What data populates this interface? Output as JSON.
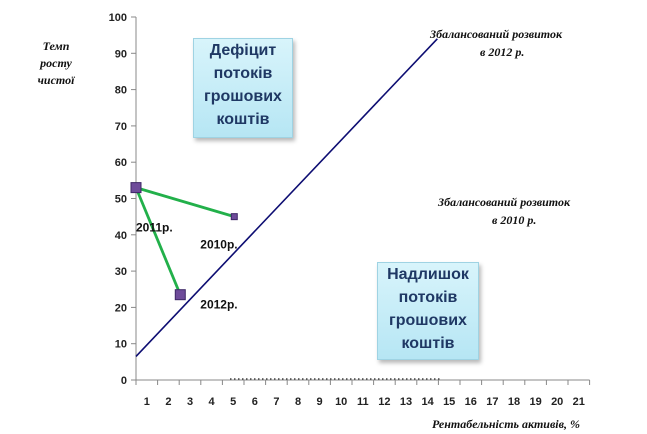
{
  "chart_data": {
    "type": "scatter",
    "ylabel_lines": [
      "Темп",
      "росту",
      "чистої"
    ],
    "xlabel": "Рентабельність  активів, %",
    "xlim": [
      0,
      21
    ],
    "ylim": [
      0,
      100
    ],
    "x_ticks": [
      1,
      2,
      3,
      4,
      5,
      6,
      7,
      8,
      9,
      10,
      11,
      12,
      13,
      14,
      15,
      16,
      17,
      18,
      19,
      20,
      21
    ],
    "y_ticks": [
      0,
      10,
      20,
      30,
      40,
      50,
      60,
      70,
      80,
      90,
      100
    ],
    "balanced_line": {
      "x": [
        0,
        13.95
      ],
      "y": [
        6.5,
        94
      ]
    },
    "series": [
      {
        "color": "#22b04a",
        "points": [
          {
            "x": 0,
            "y": 53,
            "label": "2011р."
          },
          {
            "x": 4.55,
            "y": 45,
            "label": "2010р."
          }
        ]
      },
      {
        "color": "#22b04a",
        "points": [
          {
            "x": 0,
            "y": 53,
            "label": ""
          },
          {
            "x": 2.05,
            "y": 23.5,
            "label": "2012р."
          }
        ]
      }
    ],
    "annotations": {
      "balanced_2012": [
        "Збалансований розвиток",
        "в 2012 р."
      ],
      "balanced_2010": [
        "Збалансований розвиток",
        "в 2010 р."
      ],
      "deficit": [
        "Дефіцит",
        "потоків",
        "грошових",
        "коштів"
      ],
      "surplus": [
        "Надлишок",
        "потоків",
        "грошових",
        "коштів"
      ]
    },
    "grid": false
  }
}
